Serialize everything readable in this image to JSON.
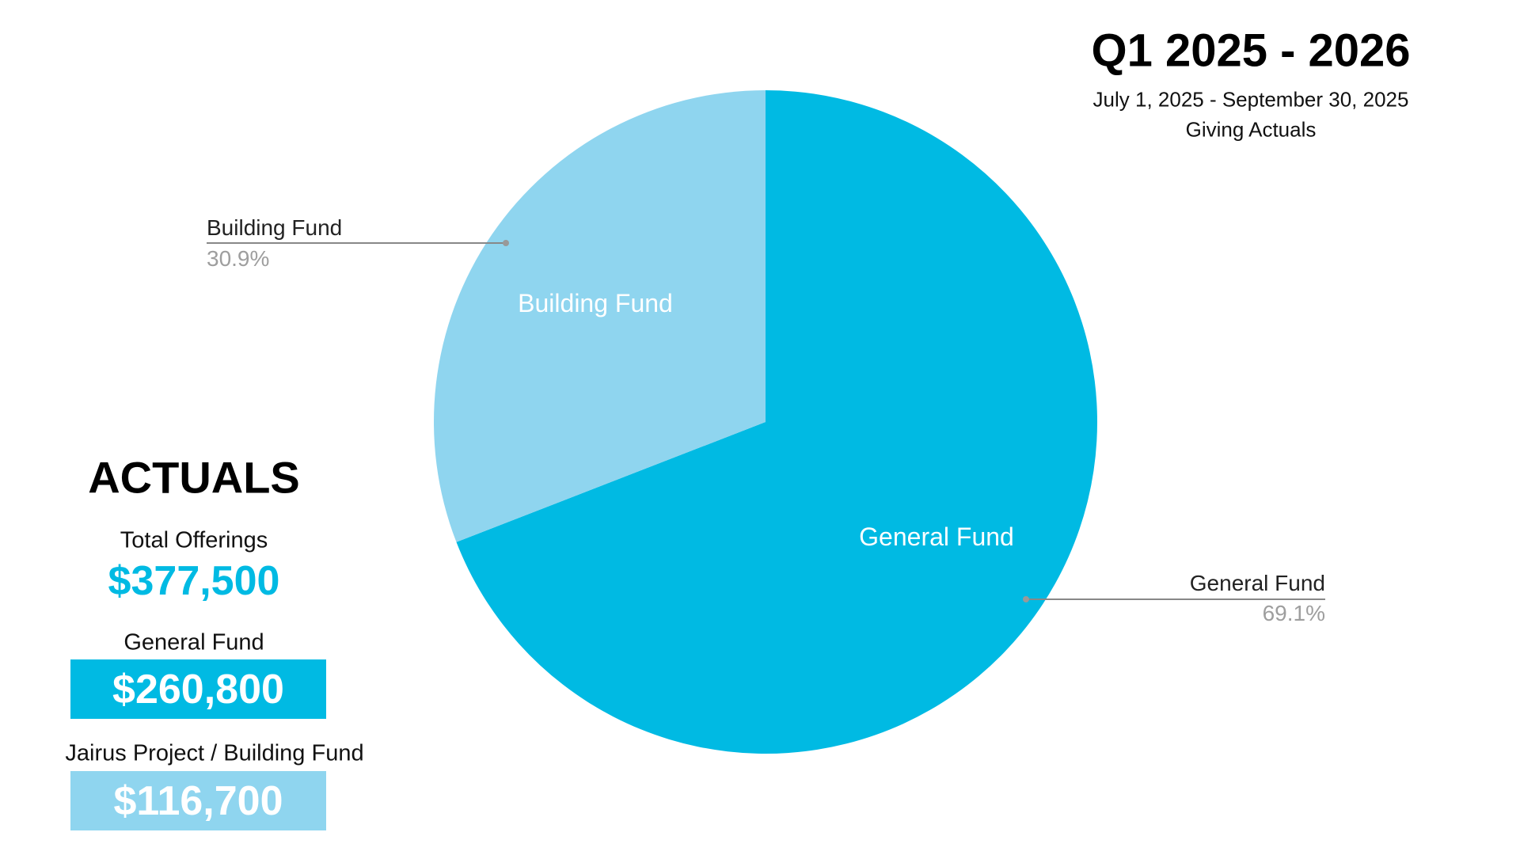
{
  "header": {
    "title": "Q1 2025 - 2026",
    "date_range": "July 1, 2025 - September 30, 2025",
    "subtitle": "Giving Actuals"
  },
  "summary": {
    "heading": "ACTUALS",
    "total_label": "Total Offerings",
    "total_value": "$377,500",
    "general_label": "General Fund",
    "general_value": "$260,800",
    "building_label": "Jairus Project / Building Fund",
    "building_value": "$116,700"
  },
  "colors": {
    "general": "#00bae3",
    "building": "#8fd5ef",
    "leader": "#888888",
    "pct": "#9e9e9e"
  },
  "chart_data": {
    "type": "pie",
    "title": "Q1 2025 - 2026",
    "start_angle": "12 o'clock",
    "slices": [
      {
        "label": "General Fund",
        "value": 69.1,
        "pct_label": "69.1%",
        "color": "#00bae3"
      },
      {
        "label": "Building Fund",
        "value": 30.9,
        "pct_label": "30.9%",
        "color": "#8fd5ef"
      }
    ]
  }
}
